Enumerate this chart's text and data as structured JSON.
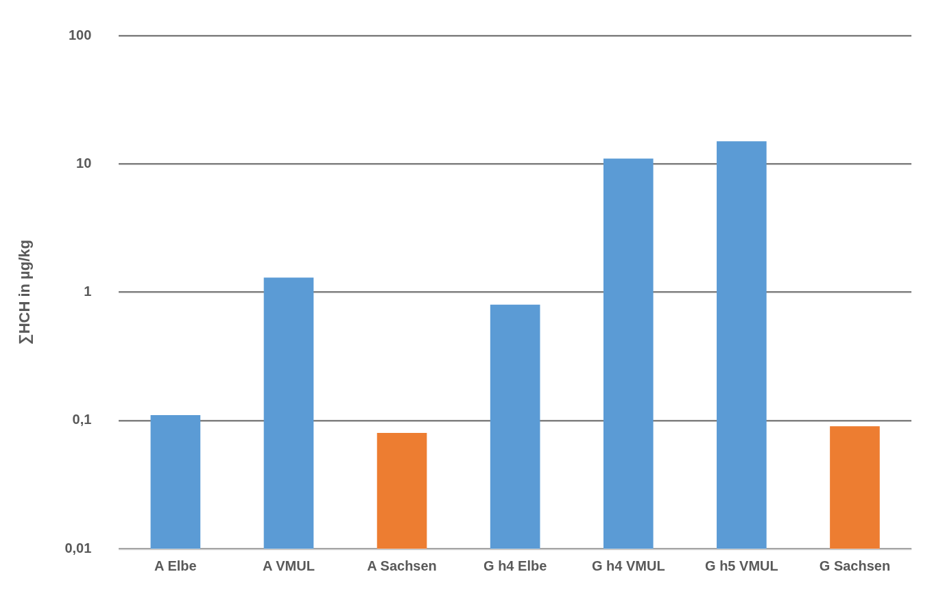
{
  "chart_data": {
    "type": "bar",
    "ylabel": "∑HCH in µg/kg",
    "categories": [
      "A Elbe",
      "A VMUL",
      "A Sachsen",
      "G h4 Elbe",
      "G h4 VMUL",
      "G h5 VMUL",
      "G Sachsen"
    ],
    "values": [
      0.11,
      1.3,
      0.08,
      0.8,
      11,
      15,
      0.09
    ],
    "colors": [
      "#5b9bd5",
      "#5b9bd5",
      "#ed7d31",
      "#5b9bd5",
      "#5b9bd5",
      "#5b9bd5",
      "#ed7d31"
    ],
    "log": "y",
    "ylim": [
      0.01,
      100
    ],
    "yticks": [
      {
        "value": 0.01,
        "label": "0,01"
      },
      {
        "value": 0.1,
        "label": "0,1"
      },
      {
        "value": 1,
        "label": "1"
      },
      {
        "value": 10,
        "label": "10"
      },
      {
        "value": 100,
        "label": "100"
      }
    ],
    "grid": "y",
    "legend": false
  }
}
